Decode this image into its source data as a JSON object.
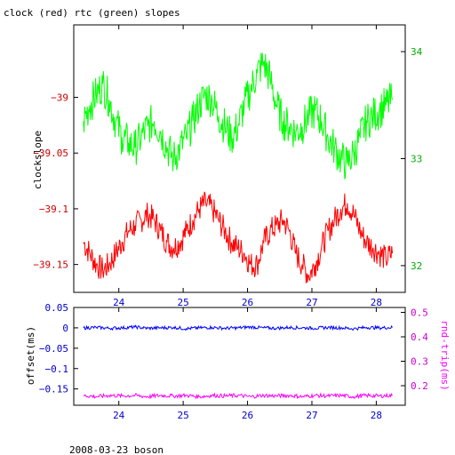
{
  "title": "clock (red) rtc (green) slopes",
  "footer": "2008-03-23 boson",
  "colors": {
    "clock": "#ff0000",
    "rtc": "#00ff00",
    "offset": "#0000ff",
    "rndtrip": "#ff00ff",
    "axis": "#000000"
  },
  "chart_data": [
    {
      "type": "line",
      "title": "clock (red) rtc (green) slopes",
      "xlim": [
        23.3,
        28.45
      ],
      "xticks": [
        24,
        25,
        26,
        27,
        28
      ],
      "ylabel": "clockslope",
      "ylim": [
        -39.175,
        -38.935
      ],
      "yticks": [
        -39,
        -39.05,
        -39.1,
        -39.15
      ],
      "y2lim": [
        31.75,
        34.25
      ],
      "y2ticks": [
        32,
        33,
        34
      ],
      "series": [
        {
          "name": "clock",
          "axis": "left",
          "x": [
            23.45,
            23.55,
            23.65,
            23.75,
            23.85,
            23.95,
            24.05,
            24.15,
            24.25,
            24.35,
            24.45,
            24.55,
            24.65,
            24.75,
            24.85,
            24.95,
            25.05,
            25.15,
            25.25,
            25.35,
            25.45,
            25.55,
            25.65,
            25.75,
            25.85,
            25.95,
            26.05,
            26.15,
            26.25,
            26.35,
            26.45,
            26.55,
            26.65,
            26.75,
            26.85,
            26.95,
            27.05,
            27.15,
            27.25,
            27.35,
            27.45,
            27.55,
            27.65,
            27.75,
            27.85,
            27.95,
            28.05,
            28.15,
            28.25
          ],
          "values": [
            -39.13,
            -39.14,
            -39.15,
            -39.155,
            -39.15,
            -39.14,
            -39.13,
            -39.12,
            -39.115,
            -39.11,
            -39.105,
            -39.11,
            -39.12,
            -39.13,
            -39.135,
            -39.13,
            -39.12,
            -39.11,
            -39.1,
            -39.095,
            -39.1,
            -39.11,
            -39.12,
            -39.13,
            -39.135,
            -39.14,
            -39.15,
            -39.15,
            -39.13,
            -39.12,
            -39.115,
            -39.11,
            -39.12,
            -39.14,
            -39.15,
            -39.16,
            -39.15,
            -39.135,
            -39.12,
            -39.11,
            -39.1,
            -39.095,
            -39.105,
            -39.12,
            -39.13,
            -39.135,
            -39.14,
            -39.145,
            -39.14
          ]
        },
        {
          "name": "rtc",
          "axis": "right",
          "x": [
            23.45,
            23.55,
            23.65,
            23.75,
            23.85,
            23.95,
            24.05,
            24.15,
            24.25,
            24.35,
            24.45,
            24.55,
            24.65,
            24.75,
            24.85,
            24.95,
            25.05,
            25.15,
            25.25,
            25.35,
            25.45,
            25.55,
            25.65,
            25.75,
            25.85,
            25.95,
            26.05,
            26.15,
            26.25,
            26.35,
            26.45,
            26.55,
            26.65,
            26.75,
            26.85,
            26.95,
            27.05,
            27.15,
            27.25,
            27.35,
            27.45,
            27.55,
            27.65,
            27.75,
            27.85,
            27.95,
            28.05,
            28.15,
            28.25
          ],
          "values": [
            33.35,
            33.5,
            33.6,
            33.7,
            33.55,
            33.35,
            33.2,
            33.15,
            33.1,
            33.2,
            33.3,
            33.35,
            33.25,
            33.1,
            33.0,
            33.1,
            33.2,
            33.35,
            33.5,
            33.6,
            33.55,
            33.4,
            33.3,
            33.2,
            33.3,
            33.5,
            33.65,
            33.8,
            33.9,
            33.75,
            33.5,
            33.35,
            33.3,
            33.25,
            33.3,
            33.4,
            33.45,
            33.35,
            33.2,
            33.1,
            33.0,
            32.95,
            33.05,
            33.2,
            33.35,
            33.4,
            33.45,
            33.5,
            33.55
          ]
        }
      ]
    },
    {
      "type": "line",
      "xlim": [
        23.3,
        28.45
      ],
      "xticks": [
        24,
        25,
        26,
        27,
        28
      ],
      "ylabel": "offset(ms)",
      "ylim": [
        -0.19,
        0.05
      ],
      "yticks": [
        0.05,
        0,
        -0.05,
        -0.1,
        -0.15
      ],
      "y2label": "rnd-trip(ms)",
      "y2lim": [
        0.12,
        0.52
      ],
      "y2ticks": [
        0.5,
        0.4,
        0.3,
        0.2
      ],
      "series": [
        {
          "name": "offset",
          "axis": "left",
          "x": [
            23.45,
            23.65,
            23.85,
            24.05,
            24.25,
            24.45,
            24.65,
            24.85,
            25.05,
            25.25,
            25.45,
            25.65,
            25.85,
            26.05,
            26.25,
            26.45,
            26.65,
            26.85,
            27.05,
            27.25,
            27.45,
            27.65,
            27.85,
            28.05,
            28.25
          ],
          "values": [
            0.0,
            0.001,
            -0.001,
            0.0,
            0.002,
            -0.001,
            0.0,
            0.001,
            -0.002,
            0.0,
            0.001,
            -0.001,
            0.0,
            0.002,
            0.0,
            -0.001,
            0.001,
            0.0,
            -0.001,
            0.001,
            0.0,
            -0.002,
            0.001,
            0.0,
            0.001
          ]
        },
        {
          "name": "rnd-trip",
          "axis": "right",
          "x": [
            23.45,
            23.65,
            23.85,
            24.05,
            24.25,
            24.45,
            24.65,
            24.85,
            25.05,
            25.25,
            25.45,
            25.65,
            25.85,
            26.05,
            26.25,
            26.45,
            26.65,
            26.85,
            27.05,
            27.25,
            27.45,
            27.65,
            27.85,
            28.05,
            28.25
          ],
          "values": [
            0.16,
            0.155,
            0.16,
            0.158,
            0.16,
            0.155,
            0.16,
            0.158,
            0.16,
            0.155,
            0.16,
            0.158,
            0.16,
            0.155,
            0.16,
            0.158,
            0.16,
            0.155,
            0.16,
            0.158,
            0.16,
            0.155,
            0.16,
            0.158,
            0.16
          ]
        }
      ]
    }
  ]
}
